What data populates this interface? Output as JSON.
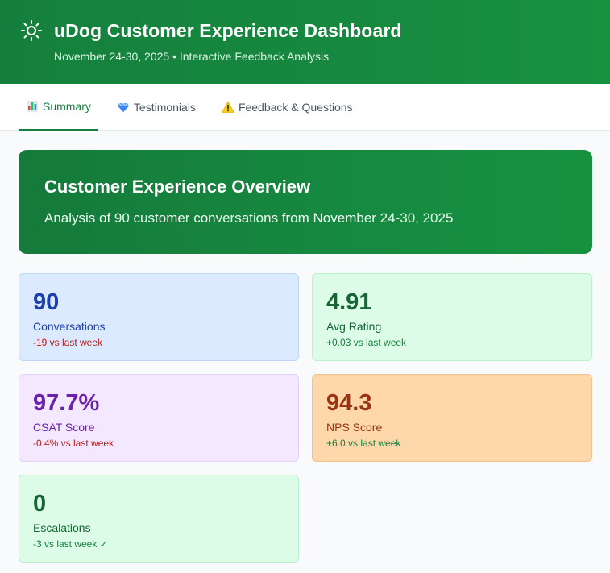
{
  "header": {
    "icon": "sun-icon",
    "title": "uDog Customer Experience Dashboard",
    "subtitle": "November 24-30, 2025 • Interactive Feedback Analysis"
  },
  "tabs": [
    {
      "icon": "bar-chart-icon",
      "label": "Summary",
      "active": true
    },
    {
      "icon": "gem-icon",
      "label": "Testimonials",
      "active": false
    },
    {
      "icon": "warning-icon",
      "label": "Feedback & Questions",
      "active": false
    }
  ],
  "overview": {
    "title": "Customer Experience Overview",
    "description": "Analysis of 90 customer conversations from November 24-30, 2025"
  },
  "metrics": [
    {
      "value": "90",
      "label": "Conversations",
      "delta": "-19 vs last week",
      "trend": "negative",
      "color": "#1e40af"
    },
    {
      "value": "4.91",
      "label": "Avg Rating",
      "delta": "+0.03 vs last week",
      "trend": "positive",
      "color": "#166534"
    },
    {
      "value": "97.7%",
      "label": "CSAT Score",
      "delta": "-0.4% vs last week",
      "trend": "negative",
      "color": "#6b21a8"
    },
    {
      "value": "94.3",
      "label": "NPS Score",
      "delta": "+6.0 vs last week",
      "trend": "positive",
      "color": "#9a3412"
    },
    {
      "value": "0",
      "label": "Escalations",
      "delta": "-3 vs last week ✓",
      "trend": "positive",
      "color": "#166534"
    }
  ]
}
